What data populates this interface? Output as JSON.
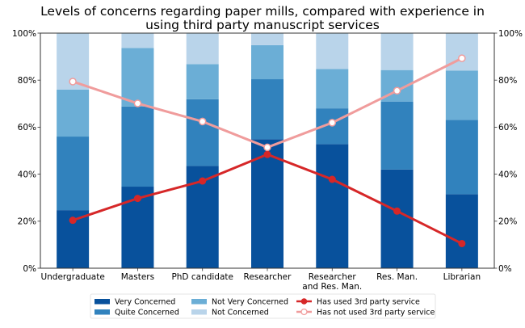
{
  "chart_data": {
    "type": "bar",
    "stacked": true,
    "title": [
      "Levels of concerns regarding paper mills, compared with experience in",
      "using third party manuscript services"
    ],
    "xlabel": "",
    "ylabel": "",
    "ylim": [
      0,
      100
    ],
    "y_ticks": [
      "0%",
      "20%",
      "40%",
      "60%",
      "80%",
      "100%"
    ],
    "y_tick_values": [
      0,
      20,
      40,
      60,
      80,
      100
    ],
    "secondary_y_ticks": [
      "0%",
      "20%",
      "40%",
      "60%",
      "80%",
      "100%"
    ],
    "grid": false,
    "categories": [
      [
        "Undergraduate"
      ],
      [
        "Masters"
      ],
      [
        "PhD candidate"
      ],
      [
        "Researcher"
      ],
      [
        "Researcher",
        "and Res. Man."
      ],
      [
        "Res. Man."
      ],
      [
        "Librarian"
      ]
    ],
    "series": [
      {
        "name": "Very Concerned",
        "type": "bar",
        "color": "#08519c",
        "values": [
          24.7,
          34.7,
          43.5,
          54.9,
          52.8,
          42.0,
          31.5
        ]
      },
      {
        "name": "Quite Concerned",
        "type": "bar",
        "color": "#3182bd",
        "values": [
          31.3,
          34.1,
          28.4,
          25.5,
          15.2,
          28.9,
          31.6
        ]
      },
      {
        "name": "Not Very Concerned",
        "type": "bar",
        "color": "#6baed6",
        "values": [
          20.0,
          24.9,
          14.9,
          14.5,
          16.7,
          13.4,
          21.0
        ]
      },
      {
        "name": "Not Concerned",
        "type": "bar",
        "color": "#b9d4ea",
        "values": [
          24.0,
          6.3,
          13.2,
          5.1,
          15.3,
          15.7,
          15.9
        ]
      },
      {
        "name": "Has used 3rd party service",
        "type": "line",
        "color": "#d62728",
        "marker": "filled-circle",
        "values": [
          20.4,
          29.7,
          37.1,
          48.4,
          37.8,
          24.3,
          10.5
        ]
      },
      {
        "name": "Has not used 3rd party service",
        "type": "line",
        "color": "#f09c9c",
        "marker": "hollow-circle",
        "values": [
          79.4,
          70.1,
          62.4,
          51.4,
          61.9,
          75.5,
          89.3
        ]
      }
    ],
    "legend": {
      "placement": "bottom-center",
      "columns": 3,
      "entries": [
        "Very Concerned",
        "Quite Concerned",
        "Not Very Concerned",
        "Not Concerned",
        "Has used 3rd party service",
        "Has not used 3rd party service"
      ]
    }
  }
}
